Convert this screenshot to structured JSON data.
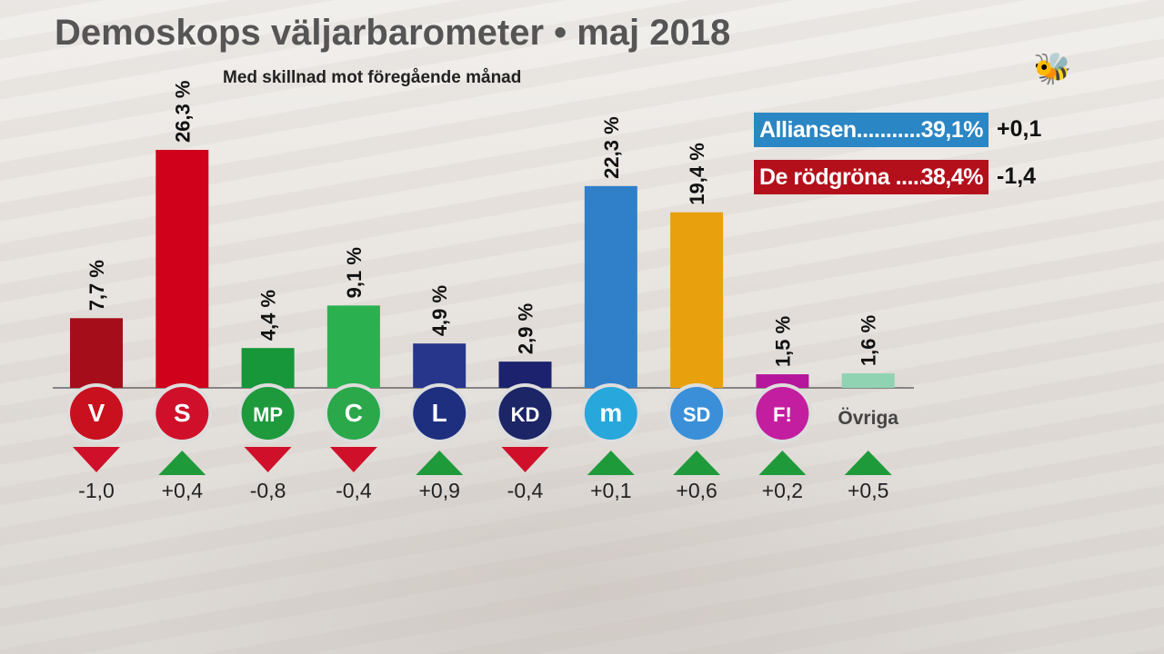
{
  "header": {
    "title": "Demoskops väljarbarometer • maj 2018",
    "subtitle": "Med skillnad mot föregående månad"
  },
  "blocs": [
    {
      "name": "Alliansen",
      "dots": "............",
      "value": "39,1%",
      "change": "+0,1",
      "color": "#2a86c4"
    },
    {
      "name": "De rödgröna",
      "dots": " ......",
      "value": "38,4%",
      "change": "-1,4",
      "color": "#b3101c"
    }
  ],
  "chart_data": {
    "type": "bar",
    "title": "Demoskops väljarbarometer • maj 2018",
    "subtitle": "Med skillnad mot föregående månad",
    "ylim": [
      0,
      27
    ],
    "categories": [
      "V",
      "S",
      "MP",
      "C",
      "L",
      "KD",
      "M",
      "SD",
      "FI",
      "Övriga"
    ],
    "values": [
      7.7,
      26.3,
      4.4,
      9.1,
      4.9,
      2.9,
      22.3,
      19.4,
      1.5,
      1.6
    ],
    "value_labels": [
      "7,7 %",
      "26,3 %",
      "4,4 %",
      "9,1 %",
      "4,9 %",
      "2,9 %",
      "22,3 %",
      "19,4 %",
      "1,5 %",
      "1,6 %"
    ],
    "changes": [
      -1.0,
      0.4,
      -0.8,
      -0.4,
      0.9,
      -0.4,
      0.1,
      0.6,
      0.2,
      0.5
    ],
    "change_labels": [
      "-1,0",
      "+0,4",
      "-0,8",
      "-0,4",
      "+0,9",
      "-0,4",
      "+0,1",
      "+0,6",
      "+0,2",
      "+0,5"
    ],
    "colors": [
      "#a50d1a",
      "#d0021b",
      "#17963a",
      "#2bb04f",
      "#27358a",
      "#1c226e",
      "#2f7fc9",
      "#e9a00d",
      "#b5169b",
      "#8fd3b2"
    ],
    "logo_text": [
      "V",
      "S",
      "MP",
      "C",
      "L",
      "KD",
      "m",
      "SD",
      "F!",
      "Övriga"
    ],
    "logo_colors": [
      "#c8101e",
      "#d0102a",
      "#1e9a3c",
      "#2aa84a",
      "#1e2f80",
      "#1c2566",
      "#28a7dc",
      "#3a8fd8",
      "#c41ea0",
      ""
    ],
    "up_color": "#1f9a3a",
    "down_color": "#d0102a"
  }
}
